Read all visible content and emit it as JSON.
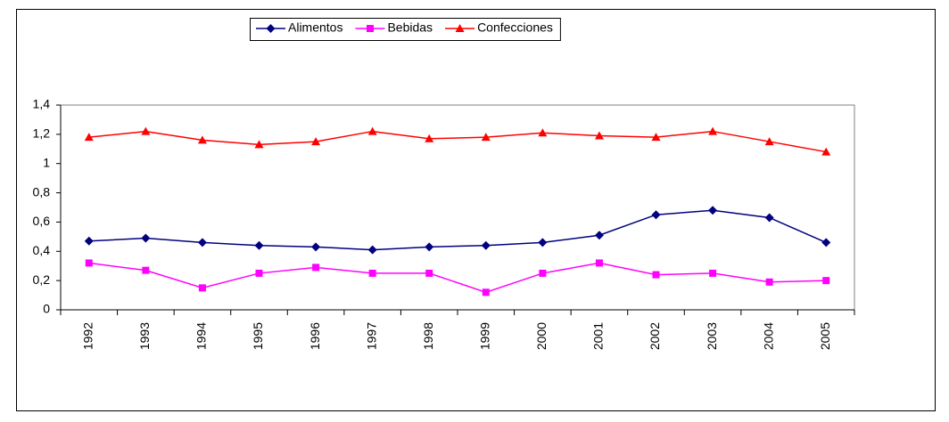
{
  "chart_data": {
    "type": "line",
    "categories": [
      "1992",
      "1993",
      "1994",
      "1995",
      "1996",
      "1997",
      "1998",
      "1999",
      "2000",
      "2001",
      "2002",
      "2003",
      "2004",
      "2005"
    ],
    "series": [
      {
        "name": "Alimentos",
        "color": "#000080",
        "marker": "diamond",
        "values": [
          0.47,
          0.49,
          0.46,
          0.44,
          0.43,
          0.41,
          0.43,
          0.44,
          0.46,
          0.51,
          0.65,
          0.68,
          0.63,
          0.46
        ]
      },
      {
        "name": "Bebidas",
        "color": "#ff00ff",
        "marker": "square",
        "values": [
          0.32,
          0.27,
          0.15,
          0.25,
          0.29,
          0.25,
          0.25,
          0.12,
          0.25,
          0.32,
          0.24,
          0.25,
          0.19,
          0.2
        ]
      },
      {
        "name": "Confecciones",
        "color": "#ff0000",
        "marker": "triangle",
        "values": [
          1.18,
          1.22,
          1.16,
          1.13,
          1.15,
          1.22,
          1.17,
          1.18,
          1.21,
          1.19,
          1.18,
          1.22,
          1.15,
          1.08
        ]
      }
    ],
    "ylim": [
      0,
      1.4
    ],
    "yticks": [
      0,
      {
        "value": 0.2,
        "label": "0,2"
      },
      {
        "value": 0.4,
        "label": "0,4"
      },
      {
        "value": 0.6,
        "label": "0,6"
      },
      {
        "value": 0.8,
        "label": "0,8"
      },
      1,
      {
        "value": 1.2,
        "label": "1,2"
      },
      {
        "value": 1.4,
        "label": "1,4"
      }
    ],
    "grid": false,
    "legend": "top"
  }
}
